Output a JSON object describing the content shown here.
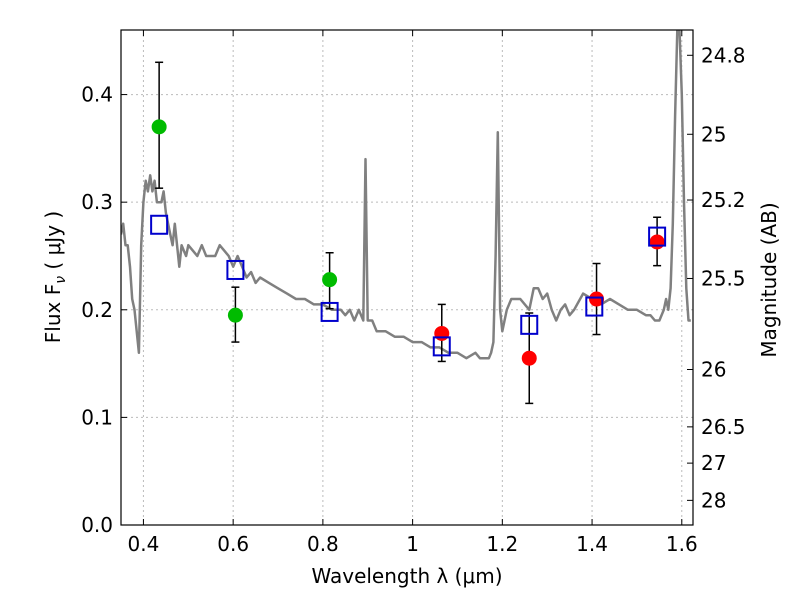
{
  "chart_data": {
    "type": "scatter",
    "xlabel": "Wavelength  λ (μm)",
    "ylabel": "Flux  F",
    "ylabel_sub": "ν",
    "ylabel_unit": "  ( μJy )",
    "y2label": "Magnitude (AB)",
    "xlim": [
      0.35,
      1.625
    ],
    "ylim": [
      0.0,
      0.46
    ],
    "grid": true,
    "x_ticks": [
      0.4,
      0.6,
      0.8,
      1.0,
      1.2,
      1.4,
      1.6
    ],
    "x_tick_labels": [
      "0.4",
      "0.6",
      "0.8",
      "1",
      "1.2",
      "1.4",
      "1.6"
    ],
    "y_ticks": [
      0.0,
      0.1,
      0.2,
      0.3,
      0.4
    ],
    "y_tick_labels": [
      "0.0",
      "0.1",
      "0.2",
      "0.3",
      "0.4"
    ],
    "y2_ticks": [
      {
        "flux": 0.4365,
        "label": "24.8"
      },
      {
        "flux": 0.3631,
        "label": "25"
      },
      {
        "flux": 0.302,
        "label": "25.2"
      },
      {
        "flux": 0.2291,
        "label": "25.5"
      },
      {
        "flux": 0.1445,
        "label": "26"
      },
      {
        "flux": 0.0912,
        "label": "26.5"
      },
      {
        "flux": 0.0575,
        "label": "27"
      },
      {
        "flux": 0.0229,
        "label": "28"
      }
    ],
    "colors": {
      "model_line": "#808080",
      "green": "#00bb00",
      "red": "#ff0000",
      "square": "#0000cc",
      "errorbar": "#000000",
      "grid": "#bbbbbb"
    },
    "series": [
      {
        "type": "line",
        "x": [
          0.35,
          0.355,
          0.36,
          0.365,
          0.37,
          0.375,
          0.38,
          0.385,
          0.39,
          0.395,
          0.4,
          0.405,
          0.41,
          0.415,
          0.42,
          0.425,
          0.43,
          0.435,
          0.44,
          0.445,
          0.45,
          0.455,
          0.46,
          0.465,
          0.47,
          0.48,
          0.485,
          0.49,
          0.495,
          0.5,
          0.51,
          0.52,
          0.53,
          0.54,
          0.55,
          0.56,
          0.57,
          0.58,
          0.59,
          0.6,
          0.61,
          0.62,
          0.63,
          0.64,
          0.65,
          0.66,
          0.68,
          0.7,
          0.72,
          0.74,
          0.76,
          0.78,
          0.8,
          0.82,
          0.84,
          0.85,
          0.86,
          0.87,
          0.88,
          0.89,
          0.895,
          0.9,
          0.91,
          0.92,
          0.94,
          0.96,
          0.98,
          1.0,
          1.02,
          1.04,
          1.06,
          1.08,
          1.1,
          1.12,
          1.14,
          1.15,
          1.16,
          1.17,
          1.175,
          1.18,
          1.185,
          1.19,
          1.195,
          1.2,
          1.21,
          1.22,
          1.24,
          1.26,
          1.27,
          1.28,
          1.29,
          1.3,
          1.31,
          1.32,
          1.33,
          1.34,
          1.35,
          1.36,
          1.38,
          1.4,
          1.42,
          1.44,
          1.46,
          1.48,
          1.5,
          1.52,
          1.53,
          1.54,
          1.55,
          1.56,
          1.565,
          1.57,
          1.575,
          1.58,
          1.585,
          1.59,
          1.595,
          1.6,
          1.605,
          1.61,
          1.615,
          1.62
        ],
        "y": [
          0.27,
          0.28,
          0.26,
          0.26,
          0.24,
          0.21,
          0.2,
          0.18,
          0.16,
          0.26,
          0.3,
          0.32,
          0.31,
          0.325,
          0.31,
          0.32,
          0.3,
          0.3,
          0.3,
          0.31,
          0.29,
          0.28,
          0.27,
          0.26,
          0.28,
          0.24,
          0.26,
          0.255,
          0.25,
          0.26,
          0.255,
          0.25,
          0.26,
          0.25,
          0.25,
          0.25,
          0.26,
          0.255,
          0.25,
          0.24,
          0.25,
          0.24,
          0.23,
          0.235,
          0.225,
          0.23,
          0.225,
          0.22,
          0.215,
          0.21,
          0.21,
          0.205,
          0.205,
          0.2,
          0.2,
          0.195,
          0.2,
          0.19,
          0.2,
          0.19,
          0.34,
          0.19,
          0.19,
          0.18,
          0.18,
          0.175,
          0.175,
          0.17,
          0.17,
          0.165,
          0.165,
          0.16,
          0.16,
          0.155,
          0.16,
          0.155,
          0.155,
          0.155,
          0.16,
          0.17,
          0.25,
          0.365,
          0.2,
          0.18,
          0.2,
          0.21,
          0.21,
          0.2,
          0.22,
          0.22,
          0.21,
          0.215,
          0.2,
          0.19,
          0.2,
          0.205,
          0.195,
          0.2,
          0.215,
          0.21,
          0.205,
          0.21,
          0.205,
          0.2,
          0.2,
          0.195,
          0.195,
          0.19,
          0.19,
          0.2,
          0.21,
          0.2,
          0.22,
          0.28,
          0.38,
          0.46,
          0.46,
          0.4,
          0.3,
          0.22,
          0.19,
          0.19
        ]
      },
      {
        "type": "scatter",
        "marker": "circle",
        "color": "green",
        "x": [
          0.435,
          0.605,
          0.815
        ],
        "y": [
          0.37,
          0.195,
          0.228
        ],
        "yerr_lo": [
          0.313,
          0.17,
          0.201
        ],
        "yerr_hi": [
          0.43,
          0.221,
          0.253
        ]
      },
      {
        "type": "scatter",
        "marker": "circle",
        "color": "red",
        "x": [
          1.065,
          1.26,
          1.41,
          1.545
        ],
        "y": [
          0.178,
          0.155,
          0.21,
          0.263
        ],
        "yerr_lo": [
          0.152,
          0.113,
          0.177,
          0.241
        ],
        "yerr_hi": [
          0.205,
          0.197,
          0.243,
          0.286
        ]
      },
      {
        "type": "scatter",
        "marker": "square",
        "color": "square",
        "x": [
          0.435,
          0.605,
          0.815,
          1.065,
          1.26,
          1.405,
          1.545
        ],
        "y": [
          0.279,
          0.237,
          0.198,
          0.166,
          0.186,
          0.203,
          0.268
        ]
      }
    ]
  }
}
